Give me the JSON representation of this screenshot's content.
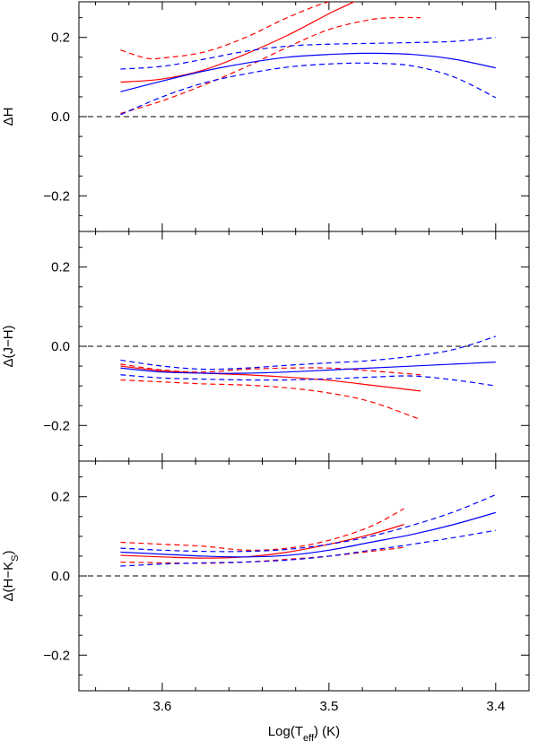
{
  "chart_data": [
    {
      "type": "line",
      "title": "",
      "xlabel": "",
      "ylabel": "ΔH",
      "xlim": [
        3.65,
        3.38
      ],
      "ylim": [
        -0.29,
        0.29
      ],
      "yticks": [
        -0.2,
        0.0,
        0.2
      ],
      "ytick_labels": [
        "−0.2",
        "0.0",
        "0.2"
      ],
      "xticks": [
        3.6,
        3.5,
        3.4
      ],
      "xtick_labels": [],
      "reference_line": 0.0,
      "series": [
        {
          "color": "#ff0000",
          "style": "solid",
          "x": [
            3.625,
            3.6,
            3.575,
            3.55,
            3.525,
            3.5,
            3.49,
            3.48
          ],
          "y": [
            0.087,
            0.095,
            0.118,
            0.158,
            0.205,
            0.26,
            0.28,
            0.3
          ]
        },
        {
          "color": "#ff0000",
          "style": "dashed",
          "x": [
            3.625,
            3.61,
            3.6,
            3.575,
            3.55,
            3.525,
            3.5,
            3.48
          ],
          "y": [
            0.168,
            0.148,
            0.148,
            0.163,
            0.2,
            0.25,
            0.29,
            0.3
          ]
        },
        {
          "color": "#ff0000",
          "style": "dashed",
          "x": [
            3.625,
            3.6,
            3.575,
            3.55,
            3.525,
            3.5,
            3.475,
            3.46,
            3.445
          ],
          "y": [
            0.008,
            0.04,
            0.08,
            0.125,
            0.175,
            0.22,
            0.245,
            0.25,
            0.25
          ]
        },
        {
          "color": "#0000ff",
          "style": "solid",
          "x": [
            3.625,
            3.6,
            3.575,
            3.55,
            3.525,
            3.5,
            3.475,
            3.45,
            3.425,
            3.4
          ],
          "y": [
            0.063,
            0.09,
            0.115,
            0.135,
            0.15,
            0.157,
            0.16,
            0.157,
            0.145,
            0.123
          ]
        },
        {
          "color": "#0000ff",
          "style": "dashed",
          "x": [
            3.625,
            3.6,
            3.575,
            3.55,
            3.525,
            3.5,
            3.475,
            3.45,
            3.425,
            3.4
          ],
          "y": [
            0.12,
            0.127,
            0.145,
            0.165,
            0.178,
            0.183,
            0.185,
            0.187,
            0.19,
            0.2
          ]
        },
        {
          "color": "#0000ff",
          "style": "dashed",
          "x": [
            3.625,
            3.6,
            3.575,
            3.55,
            3.525,
            3.5,
            3.475,
            3.45,
            3.425,
            3.4
          ],
          "y": [
            0.005,
            0.05,
            0.085,
            0.108,
            0.125,
            0.133,
            0.135,
            0.128,
            0.1,
            0.048
          ]
        }
      ]
    },
    {
      "type": "line",
      "title": "",
      "xlabel": "",
      "ylabel": "Δ(J−H)",
      "xlim": [
        3.65,
        3.38
      ],
      "ylim": [
        -0.29,
        0.29
      ],
      "yticks": [
        -0.2,
        0.0,
        0.2
      ],
      "ytick_labels": [
        "−0.2",
        "0.0",
        "0.2"
      ],
      "xticks": [
        3.6,
        3.5,
        3.4
      ],
      "xtick_labels": [],
      "reference_line": 0.0,
      "series": [
        {
          "color": "#ff0000",
          "style": "solid",
          "x": [
            3.625,
            3.6,
            3.575,
            3.55,
            3.525,
            3.5,
            3.475,
            3.445
          ],
          "y": [
            -0.05,
            -0.062,
            -0.068,
            -0.072,
            -0.078,
            -0.086,
            -0.098,
            -0.113
          ]
        },
        {
          "color": "#ff0000",
          "style": "dashed",
          "x": [
            3.625,
            3.6,
            3.575,
            3.55,
            3.525,
            3.5,
            3.475,
            3.445
          ],
          "y": [
            -0.045,
            -0.06,
            -0.065,
            -0.058,
            -0.055,
            -0.055,
            -0.062,
            -0.072
          ]
        },
        {
          "color": "#ff0000",
          "style": "dashed",
          "x": [
            3.625,
            3.6,
            3.575,
            3.55,
            3.525,
            3.5,
            3.475,
            3.445
          ],
          "y": [
            -0.085,
            -0.09,
            -0.095,
            -0.098,
            -0.105,
            -0.118,
            -0.14,
            -0.185
          ]
        },
        {
          "color": "#0000ff",
          "style": "solid",
          "x": [
            3.625,
            3.6,
            3.575,
            3.55,
            3.525,
            3.5,
            3.475,
            3.45,
            3.425,
            3.4
          ],
          "y": [
            -0.055,
            -0.065,
            -0.068,
            -0.068,
            -0.065,
            -0.06,
            -0.055,
            -0.05,
            -0.045,
            -0.04
          ]
        },
        {
          "color": "#0000ff",
          "style": "dashed",
          "x": [
            3.625,
            3.6,
            3.575,
            3.55,
            3.525,
            3.5,
            3.475,
            3.45,
            3.425,
            3.4
          ],
          "y": [
            -0.035,
            -0.05,
            -0.058,
            -0.055,
            -0.048,
            -0.042,
            -0.036,
            -0.025,
            -0.008,
            0.025
          ]
        },
        {
          "color": "#0000ff",
          "style": "dashed",
          "x": [
            3.625,
            3.6,
            3.575,
            3.55,
            3.525,
            3.5,
            3.475,
            3.45,
            3.425,
            3.4
          ],
          "y": [
            -0.072,
            -0.08,
            -0.083,
            -0.085,
            -0.085,
            -0.082,
            -0.078,
            -0.075,
            -0.085,
            -0.1
          ]
        }
      ]
    },
    {
      "type": "line",
      "title": "",
      "xlabel": "Log(T_eff) (K)",
      "ylabel": "Δ(H−K_S)",
      "xlim": [
        3.65,
        3.38
      ],
      "ylim": [
        -0.29,
        0.29
      ],
      "yticks": [
        -0.2,
        0.0,
        0.2
      ],
      "ytick_labels": [
        "−0.2",
        "0.0",
        "0.2"
      ],
      "xticks": [
        3.6,
        3.5,
        3.4
      ],
      "xtick_labels": [
        "3.6",
        "3.5",
        "3.4"
      ],
      "reference_line": 0.0,
      "series": [
        {
          "color": "#ff0000",
          "style": "solid",
          "x": [
            3.625,
            3.6,
            3.575,
            3.55,
            3.525,
            3.5,
            3.475,
            3.455
          ],
          "y": [
            0.052,
            0.048,
            0.045,
            0.048,
            0.06,
            0.08,
            0.105,
            0.13
          ]
        },
        {
          "color": "#ff0000",
          "style": "dashed",
          "x": [
            3.625,
            3.6,
            3.575,
            3.55,
            3.525,
            3.5,
            3.475,
            3.455
          ],
          "y": [
            0.085,
            0.08,
            0.075,
            0.065,
            0.07,
            0.09,
            0.125,
            0.17
          ]
        },
        {
          "color": "#ff0000",
          "style": "dashed",
          "x": [
            3.625,
            3.6,
            3.575,
            3.55,
            3.525,
            3.5,
            3.475,
            3.455
          ],
          "y": [
            0.035,
            0.033,
            0.032,
            0.035,
            0.042,
            0.05,
            0.062,
            0.072
          ]
        },
        {
          "color": "#0000ff",
          "style": "solid",
          "x": [
            3.625,
            3.6,
            3.575,
            3.55,
            3.525,
            3.5,
            3.475,
            3.45,
            3.425,
            3.4
          ],
          "y": [
            0.06,
            0.055,
            0.05,
            0.048,
            0.052,
            0.065,
            0.085,
            0.105,
            0.13,
            0.16
          ]
        },
        {
          "color": "#0000ff",
          "style": "dashed",
          "x": [
            3.625,
            3.6,
            3.575,
            3.55,
            3.525,
            3.5,
            3.475,
            3.45,
            3.425,
            3.4
          ],
          "y": [
            0.07,
            0.065,
            0.062,
            0.062,
            0.067,
            0.08,
            0.1,
            0.128,
            0.162,
            0.205
          ]
        },
        {
          "color": "#0000ff",
          "style": "dashed",
          "x": [
            3.625,
            3.6,
            3.575,
            3.55,
            3.525,
            3.5,
            3.475,
            3.45,
            3.425,
            3.4
          ],
          "y": [
            0.025,
            0.03,
            0.033,
            0.035,
            0.04,
            0.05,
            0.065,
            0.08,
            0.097,
            0.115
          ]
        }
      ]
    }
  ]
}
